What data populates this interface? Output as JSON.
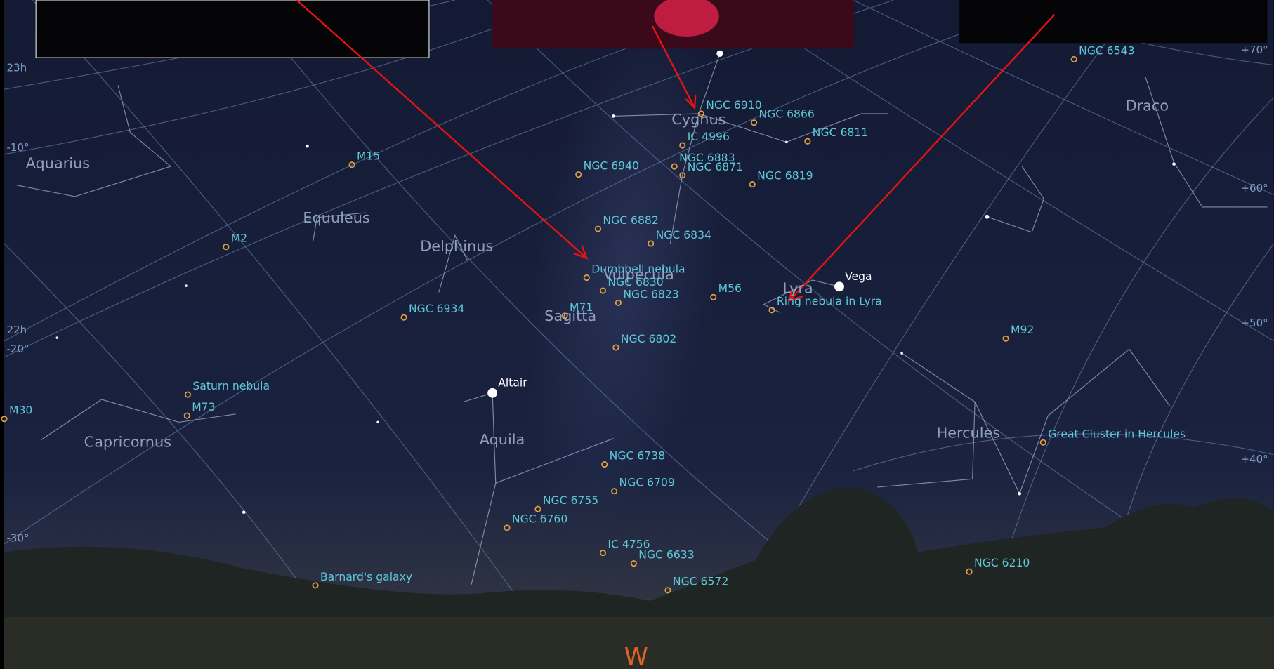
{
  "constellations": [
    "Aquarius",
    "Equuleus",
    "Delphinus",
    "Cygnus",
    "Draco",
    "Vulpecula",
    "Lyra",
    "Sagitta",
    "Aquila",
    "Capricornus",
    "Hercules"
  ],
  "objects": [
    {
      "label": "NGC 6543"
    },
    {
      "label": "NGC 6910"
    },
    {
      "label": "NGC 6866"
    },
    {
      "label": "NGC 6811"
    },
    {
      "label": "IC 4996"
    },
    {
      "label": "NGC 6883"
    },
    {
      "label": "NGC 6871"
    },
    {
      "label": "NGC 6940"
    },
    {
      "label": "NGC 6819"
    },
    {
      "label": "M15"
    },
    {
      "label": "NGC 6882"
    },
    {
      "label": "NGC 6834"
    },
    {
      "label": "M2"
    },
    {
      "label": "Dumbbell nebula"
    },
    {
      "label": "NGC 6830"
    },
    {
      "label": "NGC 6823"
    },
    {
      "label": "M56"
    },
    {
      "label": "Ring nebula in Lyra"
    },
    {
      "label": "NGC 6934"
    },
    {
      "label": "M71"
    },
    {
      "label": "M92"
    },
    {
      "label": "NGC 6802"
    },
    {
      "label": "Saturn nebula"
    },
    {
      "label": "M73"
    },
    {
      "label": "M30"
    },
    {
      "label": "Great Cluster in Hercules"
    },
    {
      "label": "NGC 6738"
    },
    {
      "label": "NGC 6709"
    },
    {
      "label": "NGC 6755"
    },
    {
      "label": "NGC 6760"
    },
    {
      "label": "IC 4756"
    },
    {
      "label": "NGC 6633"
    },
    {
      "label": "Barnard's galaxy"
    },
    {
      "label": "NGC 6210"
    },
    {
      "label": "NGC 6572"
    }
  ],
  "stars": [
    {
      "label": "Vega"
    },
    {
      "label": "Altair"
    }
  ],
  "grid_labels": [
    "23h",
    "-10°",
    "22h",
    "-20°",
    "-30°",
    "+70°",
    "+60°",
    "+50°",
    "+40°"
  ],
  "compass": "W"
}
